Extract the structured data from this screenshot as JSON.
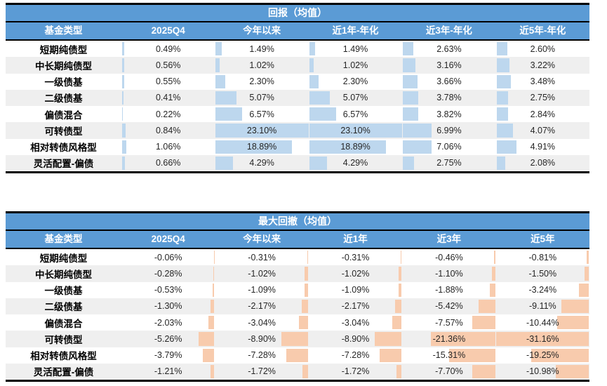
{
  "colors": {
    "header_bg": "#5B9BD5",
    "header_text": "#FFFFFF",
    "bar_blue": "#BDD7EE",
    "bar_orange": "#F8CBAD",
    "row_stripe": "#EFEFEF",
    "border": "#000000",
    "value_text": "#262626"
  },
  "chart_data": [
    {
      "type": "table",
      "id": "returns",
      "title": "回报（均值）",
      "columns": [
        "基金类型",
        "2025Q4",
        "今年以来",
        "近1年-年化",
        "近3年-年化",
        "近5年-年化"
      ],
      "bar_color": "#BDD7EE",
      "bar_direction": "left",
      "bar_scale_max": 23.1,
      "rows": [
        {
          "label": "短期纯债型",
          "values": [
            "0.49%",
            "1.49%",
            "1.49%",
            "2.63%",
            "2.60%"
          ]
        },
        {
          "label": "中长期纯债型",
          "values": [
            "0.56%",
            "1.02%",
            "1.02%",
            "3.16%",
            "3.22%"
          ]
        },
        {
          "label": "一级债基",
          "values": [
            "0.55%",
            "2.30%",
            "2.30%",
            "3.66%",
            "3.48%"
          ]
        },
        {
          "label": "二级债基",
          "values": [
            "0.41%",
            "5.07%",
            "5.07%",
            "3.78%",
            "2.75%"
          ]
        },
        {
          "label": "偏债混合",
          "values": [
            "0.22%",
            "6.57%",
            "6.57%",
            "3.82%",
            "2.84%"
          ]
        },
        {
          "label": "可转债型",
          "values": [
            "0.84%",
            "23.10%",
            "23.10%",
            "6.99%",
            "4.07%"
          ]
        },
        {
          "label": "相对转债风格型",
          "values": [
            "1.06%",
            "18.89%",
            "18.89%",
            "7.06%",
            "4.91%"
          ]
        },
        {
          "label": "灵活配置-偏债",
          "values": [
            "0.66%",
            "4.29%",
            "4.29%",
            "2.75%",
            "2.08%"
          ]
        }
      ]
    },
    {
      "type": "table",
      "id": "drawdown",
      "title": "最大回撤（均值）",
      "columns": [
        "基金类型",
        "2025Q4",
        "今年以来",
        "近1年",
        "近3年",
        "近5年"
      ],
      "bar_color": "#F8CBAD",
      "bar_direction": "right",
      "bar_scale_max": 31.16,
      "rows": [
        {
          "label": "短期纯债型",
          "values": [
            "-0.06%",
            "-0.31%",
            "-0.31%",
            "-0.46%",
            "-0.81%"
          ]
        },
        {
          "label": "中长期纯债型",
          "values": [
            "-0.28%",
            "-1.02%",
            "-1.02%",
            "-1.10%",
            "-1.50%"
          ]
        },
        {
          "label": "一级债基",
          "values": [
            "-0.53%",
            "-1.09%",
            "-1.09%",
            "-1.88%",
            "-3.24%"
          ]
        },
        {
          "label": "二级债基",
          "values": [
            "-1.30%",
            "-2.17%",
            "-2.17%",
            "-5.42%",
            "-9.11%"
          ]
        },
        {
          "label": "偏债混合",
          "values": [
            "-2.03%",
            "-3.04%",
            "-3.04%",
            "-7.57%",
            "-10.44%"
          ]
        },
        {
          "label": "可转债型",
          "values": [
            "-5.26%",
            "-8.90%",
            "-8.90%",
            "-21.36%",
            "-31.16%"
          ]
        },
        {
          "label": "相对转债风格型",
          "values": [
            "-3.79%",
            "-7.28%",
            "-7.28%",
            "-15.31%",
            "-19.25%"
          ]
        },
        {
          "label": "灵活配置-偏债",
          "values": [
            "-1.21%",
            "-1.72%",
            "-1.72%",
            "-7.70%",
            "-10.98%"
          ]
        }
      ]
    }
  ]
}
